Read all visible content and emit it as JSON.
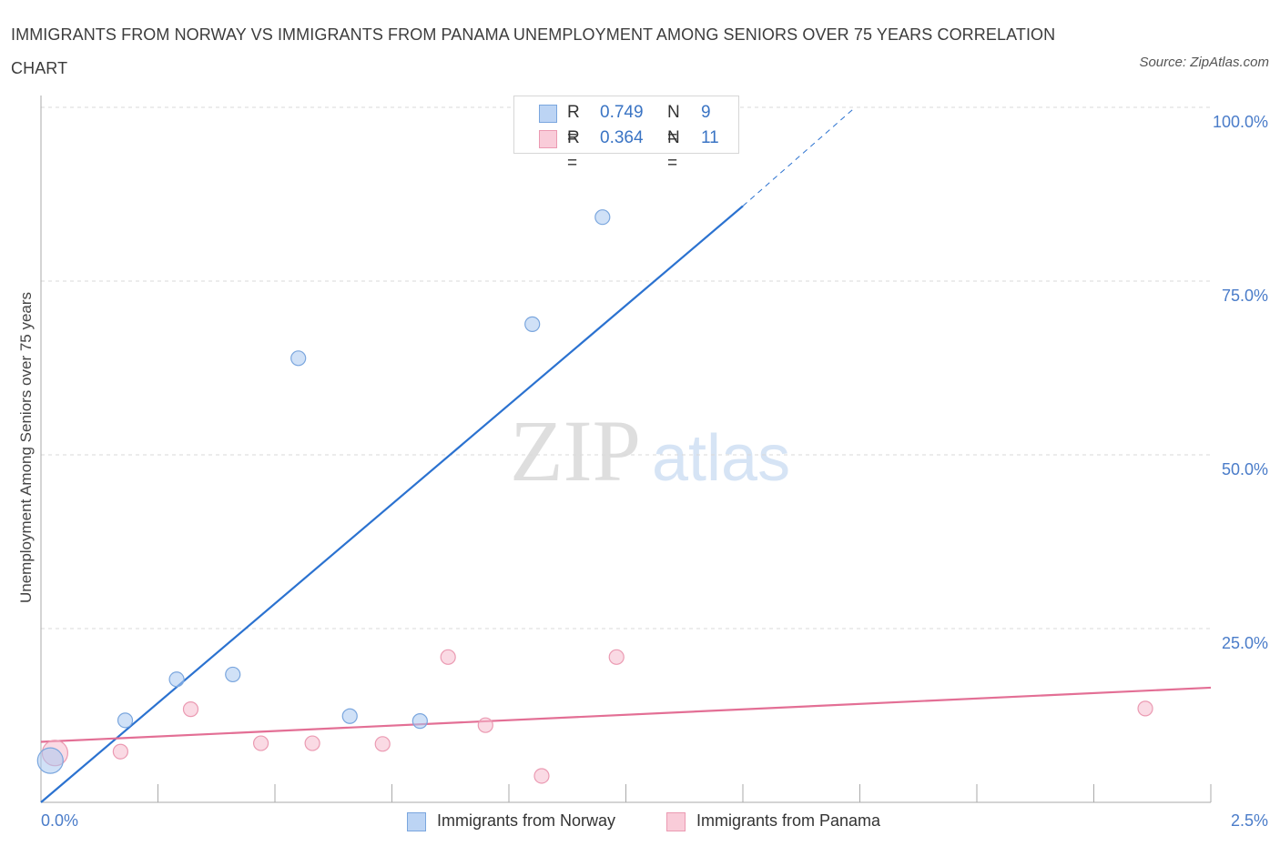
{
  "title": "IMMIGRANTS FROM NORWAY VS IMMIGRANTS FROM PANAMA UNEMPLOYMENT AMONG SENIORS OVER 75 YEARS CORRELATION CHART",
  "source": "Source: ZipAtlas.com",
  "watermark": {
    "zip": "ZIP",
    "atlas": "atlas"
  },
  "colors": {
    "norway_fill": "#aac8f0",
    "norway_stroke": "#7aa6de",
    "norway_line": "#2b72d0",
    "panama_fill": "#f6bccd",
    "panama_stroke": "#eb9ab2",
    "panama_line": "#e36f95",
    "tick_label": "#4a7cc9",
    "grid": "#d9d9d9"
  },
  "stats": {
    "norway": {
      "r_label": "R =",
      "r_value": "0.749",
      "n_label": "N =",
      "n_value": "9"
    },
    "panama": {
      "r_label": "R =",
      "r_value": "0.364",
      "n_label": "N =",
      "n_value": "11"
    }
  },
  "legend": {
    "norway": "Immigrants from Norway",
    "panama": "Immigrants from Panama"
  },
  "chart_data": {
    "type": "scatter",
    "xlabel": "",
    "ylabel": "Unemployment Among Seniors over 75 years",
    "xlim": [
      0,
      2.5
    ],
    "ylim": [
      0,
      100
    ],
    "x_tick_labels": [
      {
        "value": 0,
        "label": "0.0%"
      },
      {
        "value": 2.5,
        "label": "2.5%"
      }
    ],
    "y_ticks": [
      {
        "value": 100,
        "label": "100.0%"
      },
      {
        "value": 75,
        "label": "75.0%"
      },
      {
        "value": 50,
        "label": "50.0%"
      },
      {
        "value": 25,
        "label": "25.0%"
      }
    ],
    "series": [
      {
        "name": "Immigrants from Norway",
        "points": [
          {
            "x": 0.02,
            "y": 6.0,
            "size": "large"
          },
          {
            "x": 0.18,
            "y": 11.8
          },
          {
            "x": 0.29,
            "y": 17.7
          },
          {
            "x": 0.41,
            "y": 18.4
          },
          {
            "x": 0.55,
            "y": 63.9
          },
          {
            "x": 0.66,
            "y": 12.4
          },
          {
            "x": 0.81,
            "y": 11.7
          },
          {
            "x": 1.05,
            "y": 68.8
          },
          {
            "x": 1.2,
            "y": 84.2
          }
        ],
        "trend": {
          "x_start": 0,
          "y_start": 0,
          "x_solid_end": 1.5,
          "y_solid_end": 85.8,
          "x_dash_end": 1.74,
          "y_dash_end": 100
        }
      },
      {
        "name": "Immigrants from Panama",
        "points": [
          {
            "x": 0.03,
            "y": 7.1,
            "size": "large"
          },
          {
            "x": 0.17,
            "y": 7.3
          },
          {
            "x": 0.32,
            "y": 13.4
          },
          {
            "x": 0.47,
            "y": 8.5
          },
          {
            "x": 0.58,
            "y": 8.5
          },
          {
            "x": 0.73,
            "y": 8.4
          },
          {
            "x": 0.87,
            "y": 20.9
          },
          {
            "x": 0.95,
            "y": 11.1
          },
          {
            "x": 1.07,
            "y": 3.8
          },
          {
            "x": 1.23,
            "y": 20.9
          },
          {
            "x": 2.36,
            "y": 13.5
          }
        ],
        "trend": {
          "x_start": 0,
          "y_start": 8.7,
          "x_end": 2.5,
          "y_end": 16.5
        }
      }
    ]
  }
}
